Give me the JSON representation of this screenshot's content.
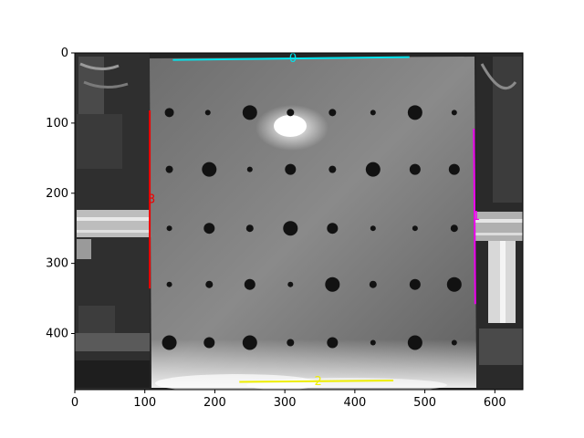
{
  "figure": {
    "image_description_visible": "grayscale photo of perforated metal plate",
    "x_ticks": [
      "0",
      "100",
      "200",
      "300",
      "400",
      "500",
      "600"
    ],
    "y_ticks": [
      "0",
      "100",
      "200",
      "300",
      "400"
    ]
  },
  "annotations": [
    {
      "label": "0",
      "color": "#00e5ee",
      "x": [
        140,
        478
      ],
      "y": [
        10,
        6
      ]
    },
    {
      "label": "1",
      "color": "#ee00ee",
      "x": [
        570,
        572
      ],
      "y": [
        108,
        358
      ]
    },
    {
      "label": "2",
      "color": "#eeee00",
      "x": [
        235,
        455
      ],
      "y": [
        469,
        467
      ]
    },
    {
      "label": "3",
      "color": "#ee0000",
      "x": [
        107,
        107
      ],
      "y": [
        82,
        336
      ]
    }
  ],
  "chart_data": {
    "type": "image",
    "xlim": [
      0,
      640
    ],
    "ylim": [
      480,
      0
    ],
    "x_ticks": [
      0,
      100,
      200,
      300,
      400,
      500,
      600
    ],
    "y_ticks": [
      0,
      100,
      200,
      300,
      400
    ]
  }
}
